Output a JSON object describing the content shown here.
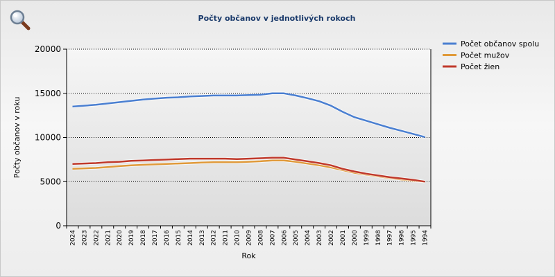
{
  "colors": {
    "total": "#4a7fd1",
    "male": "#e09a3a",
    "female": "#c0392b"
  },
  "icons": {
    "zoom": "magnifier-icon"
  },
  "chart_data": {
    "type": "line",
    "title": "Počty občanov v jednotlivých rokoch",
    "xlabel": "Rok",
    "ylabel": "Počty občanov v roku",
    "ylim": [
      0,
      20000
    ],
    "yticks": [
      "0",
      "5000",
      "10000",
      "15000",
      "20000"
    ],
    "grid": true,
    "legend_position": "top-right",
    "x": [
      "2024",
      "2023",
      "2022",
      "2021",
      "2020",
      "2019",
      "2018",
      "2017",
      "2016",
      "2015",
      "2014",
      "2013",
      "2012",
      "2011",
      "2010",
      "2009",
      "2008",
      "2007",
      "2006",
      "2005",
      "2004",
      "2003",
      "2002",
      "2001",
      "2000",
      "1999",
      "1998",
      "1997",
      "1996",
      "1995",
      "1994"
    ],
    "series": [
      {
        "name": "Počet občanov spolu",
        "color_key": "total",
        "values": [
          13500,
          13600,
          13700,
          13850,
          14000,
          14150,
          14300,
          14400,
          14500,
          14550,
          14650,
          14700,
          14750,
          14750,
          14750,
          14800,
          14850,
          15000,
          15000,
          14750,
          14450,
          14100,
          13600,
          12900,
          12300,
          11900,
          11500,
          11100,
          10750,
          10400,
          10050
        ]
      },
      {
        "name": "Počet mužov",
        "color_key": "male",
        "values": [
          6450,
          6500,
          6550,
          6650,
          6750,
          6850,
          6900,
          6950,
          7000,
          7050,
          7100,
          7150,
          7200,
          7200,
          7200,
          7250,
          7300,
          7400,
          7400,
          7250,
          7050,
          6850,
          6600,
          6300,
          6000,
          5800,
          5600,
          5400,
          5250,
          5100,
          5000
        ]
      },
      {
        "name": "Počet žien",
        "color_key": "female",
        "values": [
          7000,
          7050,
          7100,
          7200,
          7250,
          7350,
          7400,
          7450,
          7500,
          7550,
          7600,
          7600,
          7600,
          7600,
          7550,
          7600,
          7650,
          7700,
          7700,
          7500,
          7300,
          7100,
          6850,
          6450,
          6150,
          5900,
          5700,
          5500,
          5350,
          5200,
          5000
        ]
      }
    ]
  }
}
